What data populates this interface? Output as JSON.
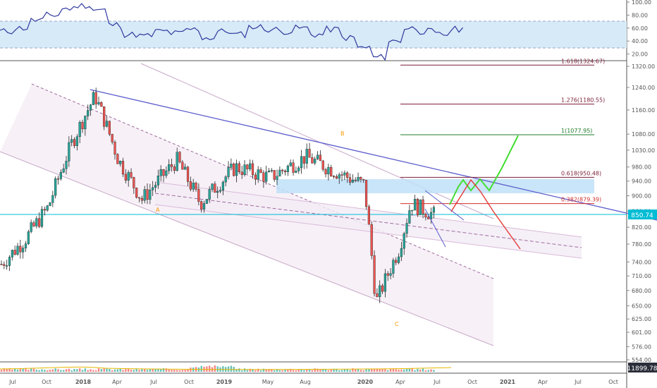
{
  "chart_data": {
    "type": "candlestick",
    "colors": {
      "up": "#26a69a",
      "down": "#ef5350",
      "rsi_line": "#2f3a9e",
      "rsi_band": "#d6eaf8",
      "trendline": "#5c5ccd",
      "zone": "#bfe0f8",
      "current_line": "#00bcd4",
      "fib_1": "#1e7d2a",
      "fib_1276": "#7b1f3a",
      "fib_0618": "#7b1f3a",
      "fib_0382": "#d32f2f",
      "projection_bull": "#44dd33",
      "projection_bear": "#e53935",
      "wave_label": "#ff9800",
      "channel": "#c8a8c8"
    },
    "x_ticks": [
      "Jul",
      "Oct",
      "2018",
      "Apr",
      "Jul",
      "Oct",
      "2019",
      "May",
      "Aug",
      "2020",
      "Apr",
      "Jul",
      "Oct",
      "2021",
      "Apr",
      "Jul",
      "Oct"
    ],
    "price_axis": {
      "ticks": [
        "1320.00",
        "1240.00",
        "1160.00",
        "1080.00",
        "1030.00",
        "980.00",
        "940.00",
        "900.00",
        "860.00",
        "820.00",
        "780.00",
        "740.00",
        "710.00",
        "680.00",
        "650.00",
        "625.00",
        "601.00",
        "576.00",
        "554.00"
      ],
      "current_value": "850.74",
      "scale": "log"
    },
    "rsi_axis": {
      "ticks": [
        "100.00",
        "80.00",
        "60.00",
        "40.00",
        "20.00"
      ]
    },
    "volume_label": "11899.78",
    "fib_levels": [
      {
        "label": "1.618(1324.67)",
        "value": 1324.67
      },
      {
        "label": "1.276(1180.55)",
        "value": 1180.55
      },
      {
        "label": "1(1077.95)",
        "value": 1077.95
      },
      {
        "label": "0.618(950.48)",
        "value": 950.48
      },
      {
        "label": "0.382(879.39)",
        "value": 879.39
      }
    ],
    "wave_labels": [
      "A",
      "B",
      "C"
    ],
    "series": [
      {
        "name": "price",
        "approx_path": [
          {
            "x": "2017-07",
            "y": 735
          },
          {
            "x": "2017-09",
            "y": 790
          },
          {
            "x": "2017-11",
            "y": 870
          },
          {
            "x": "2018-01",
            "y": 1050
          },
          {
            "x": "2018-03",
            "y": 1210
          },
          {
            "x": "2018-05",
            "y": 1000
          },
          {
            "x": "2018-07",
            "y": 890
          },
          {
            "x": "2018-10",
            "y": 1000
          },
          {
            "x": "2018-12",
            "y": 880
          },
          {
            "x": "2019-03",
            "y": 980
          },
          {
            "x": "2019-06",
            "y": 950
          },
          {
            "x": "2019-09",
            "y": 1010
          },
          {
            "x": "2019-12",
            "y": 960
          },
          {
            "x": "2020-02",
            "y": 930
          },
          {
            "x": "2020-03",
            "y": 655
          },
          {
            "x": "2020-05",
            "y": 770
          },
          {
            "x": "2020-06",
            "y": 880
          },
          {
            "x": "2020-08",
            "y": 850
          }
        ]
      }
    ]
  }
}
